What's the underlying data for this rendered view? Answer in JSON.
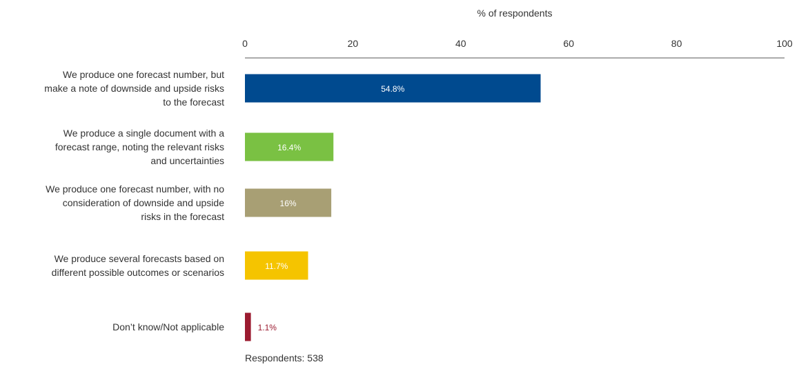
{
  "chart_data": {
    "type": "bar",
    "orientation": "horizontal",
    "xlabel": "% of respondents",
    "xlim": [
      0,
      100
    ],
    "xticks": [
      0,
      20,
      40,
      60,
      80,
      100
    ],
    "categories": [
      [
        "We produce one forecast number, but",
        "make a note of downside and upside risks",
        "to the forecast"
      ],
      [
        "We produce a single document with a",
        "forecast range, noting the relevant risks",
        "and uncertainties"
      ],
      [
        "We produce one forecast number, with no",
        "consideration of downside and upside",
        "risks in the forecast"
      ],
      [
        "We produce several forecasts based on",
        "different possible outcomes or scenarios"
      ],
      [
        "Don’t know/Not applicable"
      ]
    ],
    "values": [
      54.8,
      16.4,
      16,
      11.7,
      1.1
    ],
    "value_labels": [
      "54.8%",
      "16.4%",
      "16%",
      "11.7%",
      "1.1%"
    ],
    "colors": [
      "#004a8f",
      "#7ac143",
      "#a89f74",
      "#f5c400",
      "#9b1b30"
    ],
    "label_colors": [
      "#ffffff",
      "#ffffff",
      "#ffffff",
      "#ffffff",
      "#9b1b30"
    ],
    "legend": "none",
    "grid": false
  },
  "footnote": "Respondents: 538"
}
